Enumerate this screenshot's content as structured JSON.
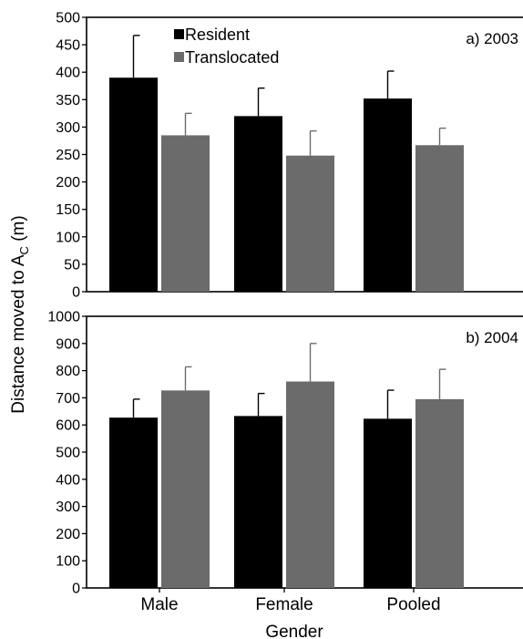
{
  "figure": {
    "ylabel_main": "Distance moved to A",
    "ylabel_sub": "C",
    "ylabel_unit": " (m)",
    "xlabel": "Gender"
  },
  "chart_data": [
    {
      "type": "bar",
      "title": "a) 2003",
      "xlabel": "Gender",
      "ylabel": "Distance moved to AC (m)",
      "categories": [
        "Male",
        "Female",
        "Pooled"
      ],
      "ylim": [
        0,
        500
      ],
      "yticks": [
        0,
        50,
        100,
        150,
        200,
        250,
        300,
        350,
        400,
        450,
        500
      ],
      "legend": "top-left",
      "grid": false,
      "series": [
        {
          "name": "Resident",
          "color": "#000000",
          "values": [
            390,
            320,
            352
          ],
          "errors": [
            77,
            51,
            50
          ]
        },
        {
          "name": "Translocated",
          "color": "#6b6b6b",
          "values": [
            285,
            248,
            267
          ],
          "errors": [
            40,
            45,
            31
          ]
        }
      ]
    },
    {
      "type": "bar",
      "title": "b) 2004",
      "xlabel": "Gender",
      "ylabel": "Distance moved to AC (m)",
      "categories": [
        "Male",
        "Female",
        "Pooled"
      ],
      "ylim": [
        0,
        1000
      ],
      "yticks": [
        0,
        100,
        200,
        300,
        400,
        500,
        600,
        700,
        800,
        900,
        1000
      ],
      "grid": false,
      "series": [
        {
          "name": "Resident",
          "color": "#000000",
          "values": [
            627,
            633,
            623
          ],
          "errors": [
            68,
            83,
            105
          ]
        },
        {
          "name": "Translocated",
          "color": "#6b6b6b",
          "values": [
            727,
            760,
            695
          ],
          "errors": [
            87,
            140,
            110
          ]
        }
      ]
    }
  ]
}
